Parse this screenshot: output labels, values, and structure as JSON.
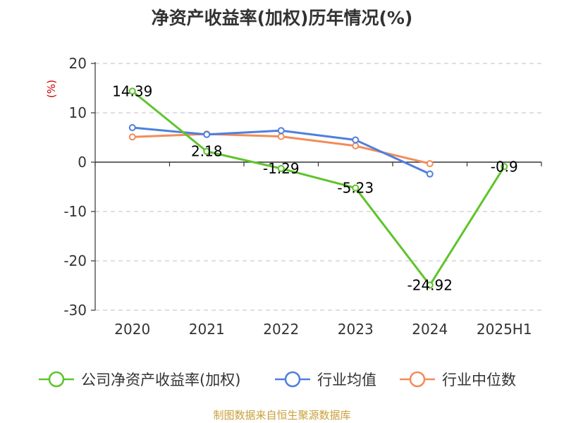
{
  "chart_data": {
    "type": "line",
    "title": "净资产收益率(加权)历年情况(%)",
    "ylabel": "(%)",
    "xlabel": "",
    "categories": [
      "2020",
      "2021",
      "2022",
      "2023",
      "2024",
      "2025H1"
    ],
    "ylim": [
      -30,
      20
    ],
    "yticks": [
      20,
      10,
      0,
      -10,
      -20,
      -30
    ],
    "grid": true,
    "legend_position": "bottom",
    "series": [
      {
        "name": "公司净资产收益率(加权)",
        "color": "#5ec42b",
        "values": [
          14.39,
          2.18,
          -1.29,
          -5.23,
          -24.92,
          -0.9
        ],
        "data_labels": [
          "14.39",
          "2.18",
          "-1.29",
          "-5.23",
          "-24.92",
          "-0.9"
        ]
      },
      {
        "name": "行业均值",
        "color": "#4f7fde",
        "values": [
          7.0,
          5.6,
          6.4,
          4.5,
          -2.4,
          null
        ]
      },
      {
        "name": "行业中位数",
        "color": "#f28c5a",
        "values": [
          5.1,
          5.7,
          5.2,
          3.3,
          -0.3,
          null
        ]
      }
    ],
    "source": "制图数据来自恒生聚源数据库"
  }
}
